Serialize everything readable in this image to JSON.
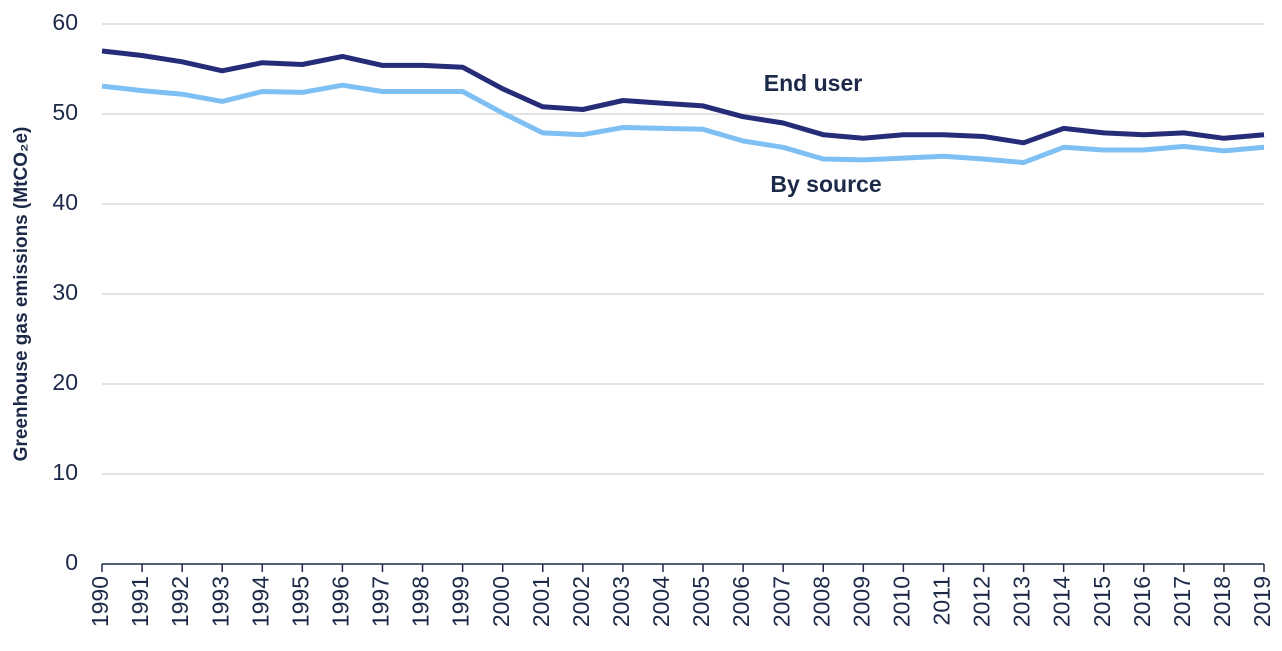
{
  "chart_data": {
    "type": "line",
    "ylabel": "Greenhouse gas emissions (MtCO₂e)",
    "categories": [
      "1990",
      "1991",
      "1992",
      "1993",
      "1994",
      "1995",
      "1996",
      "1997",
      "1998",
      "1999",
      "2000",
      "2001",
      "2002",
      "2003",
      "2004",
      "2005",
      "2006",
      "2007",
      "2008",
      "2009",
      "2010",
      "2011",
      "2012",
      "2013",
      "2014",
      "2015",
      "2016",
      "2017",
      "2018",
      "2019"
    ],
    "series": [
      {
        "name": "End user",
        "color": "#262c78",
        "values": [
          57.0,
          56.5,
          55.8,
          54.8,
          55.7,
          55.5,
          56.4,
          55.4,
          55.4,
          55.2,
          52.8,
          50.8,
          50.5,
          51.5,
          51.2,
          50.9,
          49.7,
          49.0,
          47.7,
          47.3,
          47.7,
          47.7,
          47.5,
          46.8,
          48.4,
          47.9,
          47.7,
          47.9,
          47.3,
          47.7
        ]
      },
      {
        "name": "By source",
        "color": "#7fc0f4",
        "values": [
          53.1,
          52.6,
          52.2,
          51.4,
          52.5,
          52.4,
          53.2,
          52.5,
          52.5,
          52.5,
          50.1,
          47.9,
          47.7,
          48.5,
          48.4,
          48.3,
          47.0,
          46.3,
          45.0,
          44.9,
          45.1,
          45.3,
          45.0,
          44.6,
          46.3,
          46.0,
          46.0,
          46.4,
          45.9,
          46.3
        ]
      }
    ],
    "ylim": [
      0,
      60
    ],
    "yticks": [
      0,
      10,
      20,
      30,
      40,
      50,
      60
    ],
    "grid": true
  }
}
